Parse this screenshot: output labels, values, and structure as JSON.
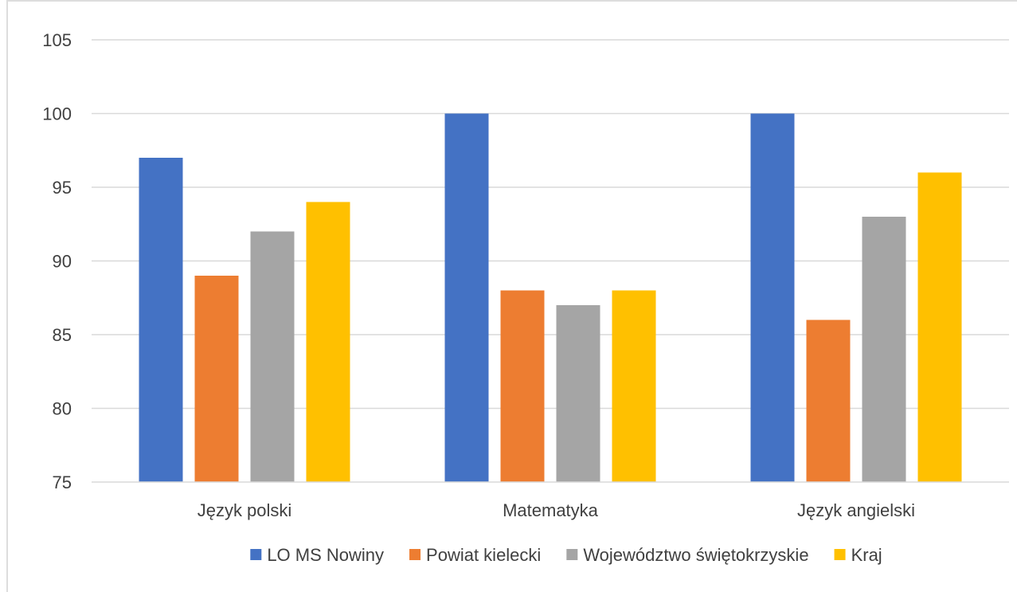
{
  "chart_data": {
    "type": "bar",
    "categories": [
      "Język polski",
      "Matematyka",
      "Język angielski"
    ],
    "series": [
      {
        "name": "LO MS Nowiny",
        "values": [
          97,
          100,
          100
        ],
        "color": "#4472C4"
      },
      {
        "name": "Powiat kielecki",
        "values": [
          89,
          88,
          86
        ],
        "color": "#ED7D31"
      },
      {
        "name": "Województwo świętokrzyskie",
        "values": [
          92,
          87,
          93
        ],
        "color": "#A5A5A5"
      },
      {
        "name": "Kraj",
        "values": [
          94,
          88,
          96
        ],
        "color": "#FFC000"
      }
    ],
    "title": "",
    "xlabel": "",
    "ylabel": "",
    "ylim": [
      75,
      105
    ],
    "yticks": [
      75,
      80,
      85,
      90,
      95,
      100,
      105
    ],
    "grid": true,
    "legend": "bottom"
  }
}
